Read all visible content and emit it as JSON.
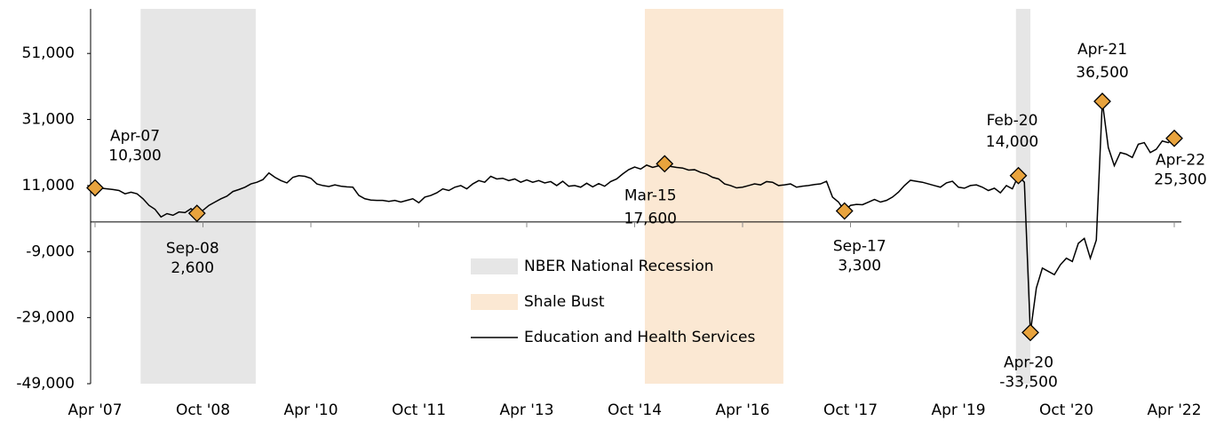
{
  "chart_data": {
    "type": "line",
    "categories": [
      "Apr '07",
      null,
      null,
      null,
      null,
      null,
      null,
      null,
      null,
      null,
      null,
      null,
      null,
      null,
      null,
      null,
      null,
      null,
      "Oct '08",
      null,
      null,
      null,
      null,
      null,
      null,
      null,
      null,
      null,
      null,
      null,
      null,
      null,
      null,
      null,
      null,
      null,
      "Apr '10",
      null,
      null,
      null,
      null,
      null,
      null,
      null,
      null,
      null,
      null,
      null,
      null,
      null,
      null,
      null,
      null,
      null,
      "Oct '11",
      null,
      null,
      null,
      null,
      null,
      null,
      null,
      null,
      null,
      null,
      null,
      null,
      null,
      null,
      null,
      null,
      null,
      "Apr '13",
      null,
      null,
      null,
      null,
      null,
      null,
      null,
      null,
      null,
      null,
      null,
      null,
      null,
      null,
      null,
      null,
      null,
      "Oct '14",
      null,
      null,
      null,
      null,
      null,
      null,
      null,
      null,
      null,
      null,
      null,
      null,
      null,
      null,
      null,
      null,
      null,
      "Apr '16",
      null,
      null,
      null,
      null,
      null,
      null,
      null,
      null,
      null,
      null,
      null,
      null,
      null,
      null,
      null,
      null,
      null,
      "Oct '17",
      null,
      null,
      null,
      null,
      null,
      null,
      null,
      null,
      null,
      null,
      null,
      null,
      null,
      null,
      null,
      null,
      null,
      "Apr '19",
      null,
      null,
      null,
      null,
      null,
      null,
      null,
      null,
      null,
      null,
      null,
      null,
      null,
      null,
      null,
      null,
      null,
      "Oct '20",
      null,
      null,
      null,
      null,
      null,
      null,
      null,
      null,
      null,
      null,
      null,
      null,
      null,
      null,
      null,
      null,
      null,
      "Apr '22"
    ],
    "series": [
      {
        "name": "Education and Health Services",
        "color": "#000000",
        "values": [
          10300,
          10200,
          10000,
          9800,
          9500,
          8500,
          9000,
          8500,
          7000,
          5000,
          3800,
          1500,
          2500,
          2000,
          3000,
          2800,
          4000,
          2600,
          3500,
          5000,
          6000,
          7000,
          7800,
          9200,
          9800,
          10500,
          11500,
          12000,
          12800,
          14800,
          13500,
          12500,
          11800,
          13500,
          14000,
          13800,
          13200,
          11500,
          11000,
          10700,
          11200,
          10800,
          10600,
          10500,
          8000,
          7000,
          6600,
          6500,
          6500,
          6200,
          6500,
          6000,
          6500,
          7000,
          5800,
          7500,
          8000,
          8800,
          10000,
          9500,
          10500,
          11000,
          10000,
          11500,
          12500,
          12000,
          13800,
          13000,
          13200,
          12500,
          13000,
          12000,
          12700,
          12000,
          12500,
          11800,
          12200,
          11000,
          12300,
          10800,
          11000,
          10500,
          11700,
          10600,
          11600,
          10800,
          12200,
          13000,
          14500,
          15800,
          16600,
          16000,
          17200,
          16500,
          17000,
          17600,
          16800,
          16500,
          16300,
          15700,
          15800,
          15000,
          14500,
          13500,
          13000,
          11500,
          11000,
          10300,
          10500,
          11000,
          11500,
          11200,
          12200,
          12000,
          11000,
          11200,
          11500,
          10500,
          10800,
          11000,
          11300,
          11500,
          12300,
          7500,
          6000,
          3300,
          5000,
          5300,
          5200,
          6000,
          6800,
          6000,
          6500,
          7500,
          9000,
          11000,
          12600,
          12300,
          12000,
          11500,
          11000,
          10500,
          11800,
          12300,
          10500,
          10200,
          11000,
          11200,
          10500,
          9500,
          10200,
          8800,
          11000,
          10000,
          14000,
          12000,
          -33500,
          -20000,
          -14000,
          -15000,
          -16000,
          -13000,
          -11000,
          -12000,
          -6500,
          -5000,
          -11000,
          -5500,
          36500,
          22500,
          17000,
          21000,
          20500,
          19500,
          23500,
          24000,
          21000,
          22000,
          24500,
          24000,
          25300
        ]
      }
    ],
    "marker_color": "#e8a33d",
    "annotations": [
      {
        "index": 0,
        "date": "Apr-07",
        "label": "10,300"
      },
      {
        "index": 17,
        "date": "Sep-08",
        "label": "2,600"
      },
      {
        "index": 95,
        "date": "Mar-15",
        "label": "17,600"
      },
      {
        "index": 125,
        "date": "Sep-17",
        "label": "3,300"
      },
      {
        "index": 154,
        "date": "Feb-20",
        "label": "14,000"
      },
      {
        "index": 156,
        "date": "Apr-20",
        "label": "-33,500"
      },
      {
        "index": 168,
        "date": "Apr-21",
        "label": "36,500"
      },
      {
        "index": 180,
        "date": "Apr-22",
        "label": "25,300"
      }
    ],
    "regions": [
      {
        "name": "NBER National Recession",
        "color": "#e6e6e6",
        "start": 7.6,
        "end": 26.8
      },
      {
        "name": "Shale Bust",
        "color": "#fbe8d3",
        "start": 91.7,
        "end": 114.8
      },
      {
        "color": "#e6e6e6",
        "start": 153.6,
        "end": 156
      }
    ],
    "ylim": [
      -49000,
      64500
    ],
    "yticks": [
      {
        "value": -49000,
        "label": "-49,000"
      },
      {
        "value": -29000,
        "label": "-29,000"
      },
      {
        "value": -9000,
        "label": "-9,000"
      },
      {
        "value": 11000,
        "label": "11,000"
      },
      {
        "value": 31000,
        "label": "31,000"
      },
      {
        "value": 51000,
        "label": "51,000"
      }
    ]
  }
}
